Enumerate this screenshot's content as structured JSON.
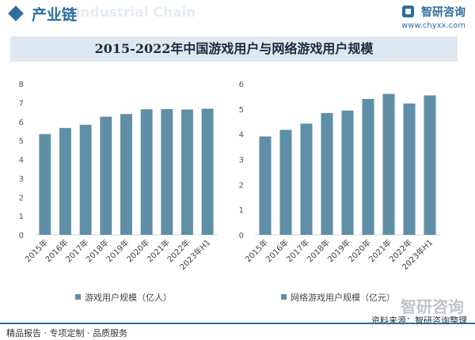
{
  "header": {
    "section_title": "产业链",
    "brand_name": "智研咨询",
    "brand_url": "www.chyxx.com",
    "watermark_text": "Industrial Chain"
  },
  "title": "2015-2022年中国游戏用户与网络游戏用户规模",
  "footer": {
    "left": "精品报告 · 专项定制 · 品质服务",
    "source_label": "资料来源：",
    "source_value": "智研咨询整理",
    "big_brand": "智研咨询"
  },
  "colors": {
    "bar": "#5f8fa6",
    "accent": "#2d6e9e",
    "band": "#dde8f1"
  },
  "chart_data": [
    {
      "type": "bar",
      "categories": [
        "2015年",
        "2016年",
        "2017年",
        "2018年",
        "2019年",
        "2020年",
        "2021年",
        "2022年",
        "2023年H1"
      ],
      "values": [
        5.34,
        5.66,
        5.83,
        6.26,
        6.4,
        6.65,
        6.66,
        6.64,
        6.68
      ],
      "legend": "游戏用户规模（亿人）",
      "yticks": [
        0,
        1,
        2,
        3,
        4,
        5,
        6,
        7,
        8
      ],
      "ylim": [
        0,
        8
      ]
    },
    {
      "type": "bar",
      "categories": [
        "2015年",
        "2016年",
        "2017年",
        "2018年",
        "2019年",
        "2020年",
        "2021年",
        "2022年",
        "2023年H1"
      ],
      "values": [
        3.91,
        4.17,
        4.42,
        4.84,
        4.94,
        5.4,
        5.6,
        5.22,
        5.54
      ],
      "legend": "网络游戏用户规模（亿元）",
      "yticks": [
        0,
        1,
        2,
        3,
        4,
        5,
        6
      ],
      "ylim": [
        0,
        6
      ]
    }
  ]
}
